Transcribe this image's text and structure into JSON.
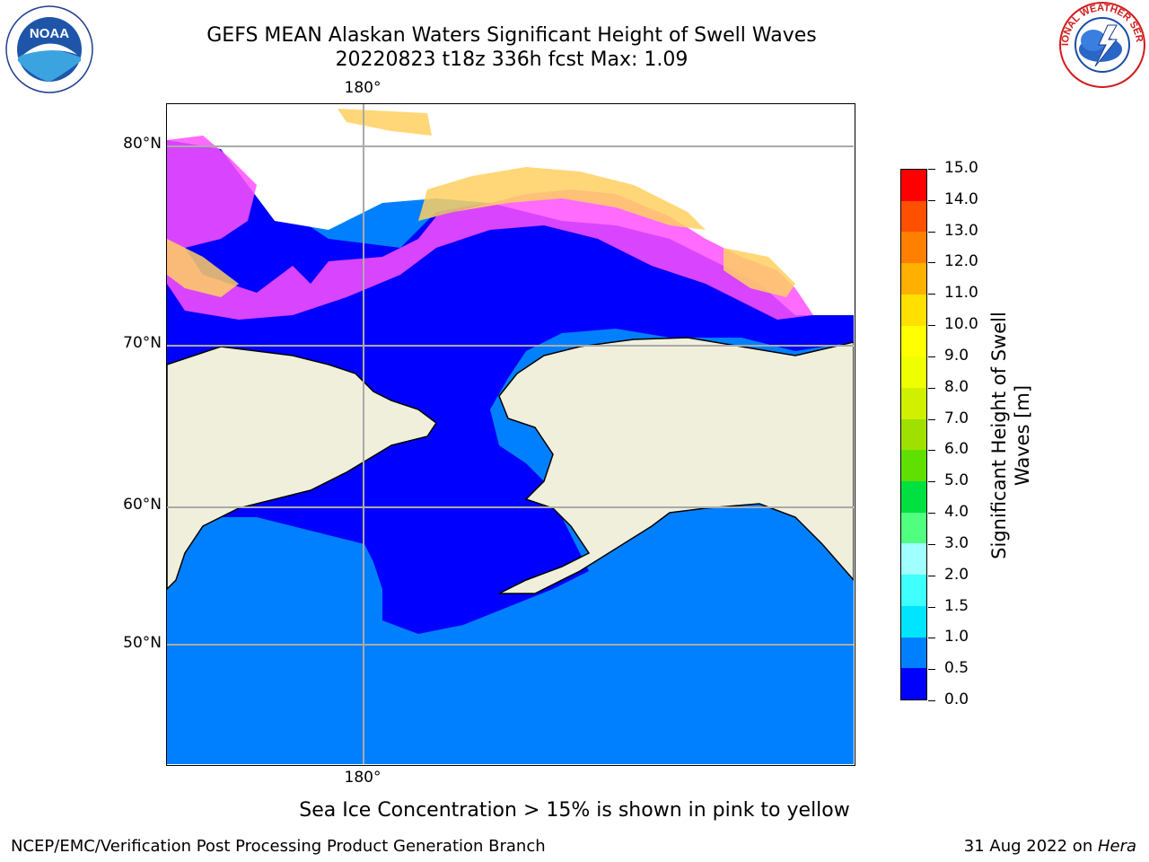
{
  "title": {
    "line1": "GEFS MEAN Alaskan Waters Significant Height of Swell Waves",
    "line2": "20220823 t18z 336h fcst   Max: 1.09"
  },
  "logos": {
    "left": "noaa-logo",
    "left_text": "NOAA",
    "right": "national-weather-service-logo",
    "right_text": "NATIONAL WEATHER SERVICE"
  },
  "map": {
    "lat_labels": [
      "80°N",
      "70°N",
      "60°N",
      "50°N"
    ],
    "lon_label_top": "180°",
    "lon_label_bottom": "180°",
    "colors": {
      "ocean_low": "#0000ff",
      "ocean_mid": "#0080ff",
      "land": "#efefdc",
      "ice_pink": "#ff50ff",
      "ice_yellow": "#ffd060",
      "grid": "#aaaaaa"
    }
  },
  "colorbar": {
    "title": "Significant Height of Swell Waves [m]",
    "ticks": [
      "0.0",
      "0.5",
      "1.0",
      "1.5",
      "2.0",
      "3.0",
      "4.0",
      "5.0",
      "6.0",
      "7.0",
      "8.0",
      "9.0",
      "10.0",
      "11.0",
      "12.0",
      "13.0",
      "14.0",
      "15.0"
    ],
    "colors": [
      "#0000ff",
      "#0080ff",
      "#00e5ff",
      "#40ffff",
      "#a0ffff",
      "#50ff80",
      "#00e040",
      "#60e000",
      "#a0e000",
      "#d0f000",
      "#f0ff00",
      "#ffff00",
      "#ffe000",
      "#ffb000",
      "#ff8000",
      "#ff5000",
      "#ff0000"
    ]
  },
  "note": "Sea Ice Concentration > 15% is shown in pink to yellow",
  "footer": {
    "left": "NCEP/EMC/Verification Post Processing Product Generation Branch",
    "right_date": "31 Aug 2022 on ",
    "right_host": "Hera"
  }
}
